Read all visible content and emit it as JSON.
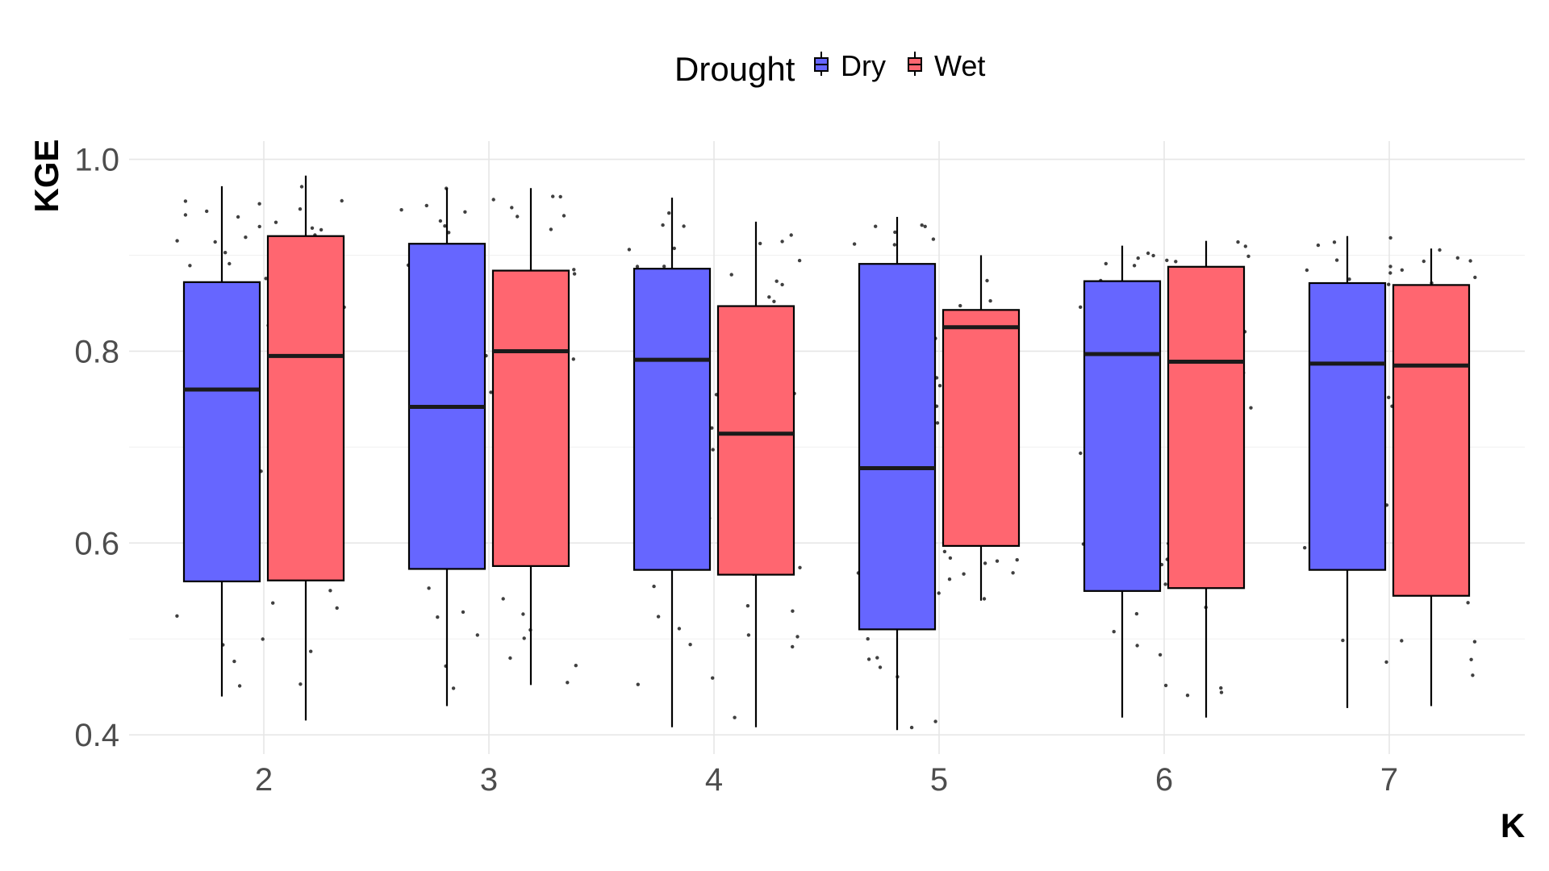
{
  "chart_data": {
    "type": "boxplot",
    "xlabel": "K",
    "ylabel": "KGE",
    "ylim": [
      0.38,
      1.04
    ],
    "yticks": [
      "0.4",
      "0.6",
      "0.8",
      "1.0"
    ],
    "categories": [
      "2",
      "3",
      "4",
      "5",
      "6",
      "7"
    ],
    "legend": {
      "title": "Drought",
      "position": "top"
    },
    "grid": true,
    "series": [
      {
        "name": "Dry",
        "color": "#6666ff",
        "boxes": [
          {
            "whisker_low": 0.44,
            "q1": 0.56,
            "median": 0.76,
            "q3": 0.872,
            "whisker_high": 0.972
          },
          {
            "whisker_low": 0.43,
            "q1": 0.573,
            "median": 0.742,
            "q3": 0.912,
            "whisker_high": 0.97
          },
          {
            "whisker_low": 0.408,
            "q1": 0.572,
            "median": 0.791,
            "q3": 0.886,
            "whisker_high": 0.96
          },
          {
            "whisker_low": 0.405,
            "q1": 0.51,
            "median": 0.678,
            "q3": 0.891,
            "whisker_high": 0.94
          },
          {
            "whisker_low": 0.418,
            "q1": 0.55,
            "median": 0.797,
            "q3": 0.873,
            "whisker_high": 0.91
          },
          {
            "whisker_low": 0.428,
            "q1": 0.572,
            "median": 0.787,
            "q3": 0.871,
            "whisker_high": 0.92
          }
        ]
      },
      {
        "name": "Wet",
        "color": "#ff6670",
        "boxes": [
          {
            "whisker_low": 0.415,
            "q1": 0.561,
            "median": 0.795,
            "q3": 0.92,
            "whisker_high": 0.983
          },
          {
            "whisker_low": 0.452,
            "q1": 0.576,
            "median": 0.8,
            "q3": 0.884,
            "whisker_high": 0.97
          },
          {
            "whisker_low": 0.408,
            "q1": 0.567,
            "median": 0.714,
            "q3": 0.847,
            "whisker_high": 0.935
          },
          {
            "whisker_low": 0.54,
            "q1": 0.597,
            "median": 0.825,
            "q3": 0.843,
            "whisker_high": 0.9
          },
          {
            "whisker_low": 0.418,
            "q1": 0.553,
            "median": 0.789,
            "q3": 0.888,
            "whisker_high": 0.915
          },
          {
            "whisker_low": 0.43,
            "q1": 0.545,
            "median": 0.785,
            "q3": 0.869,
            "whisker_high": 0.907
          }
        ]
      }
    ]
  }
}
